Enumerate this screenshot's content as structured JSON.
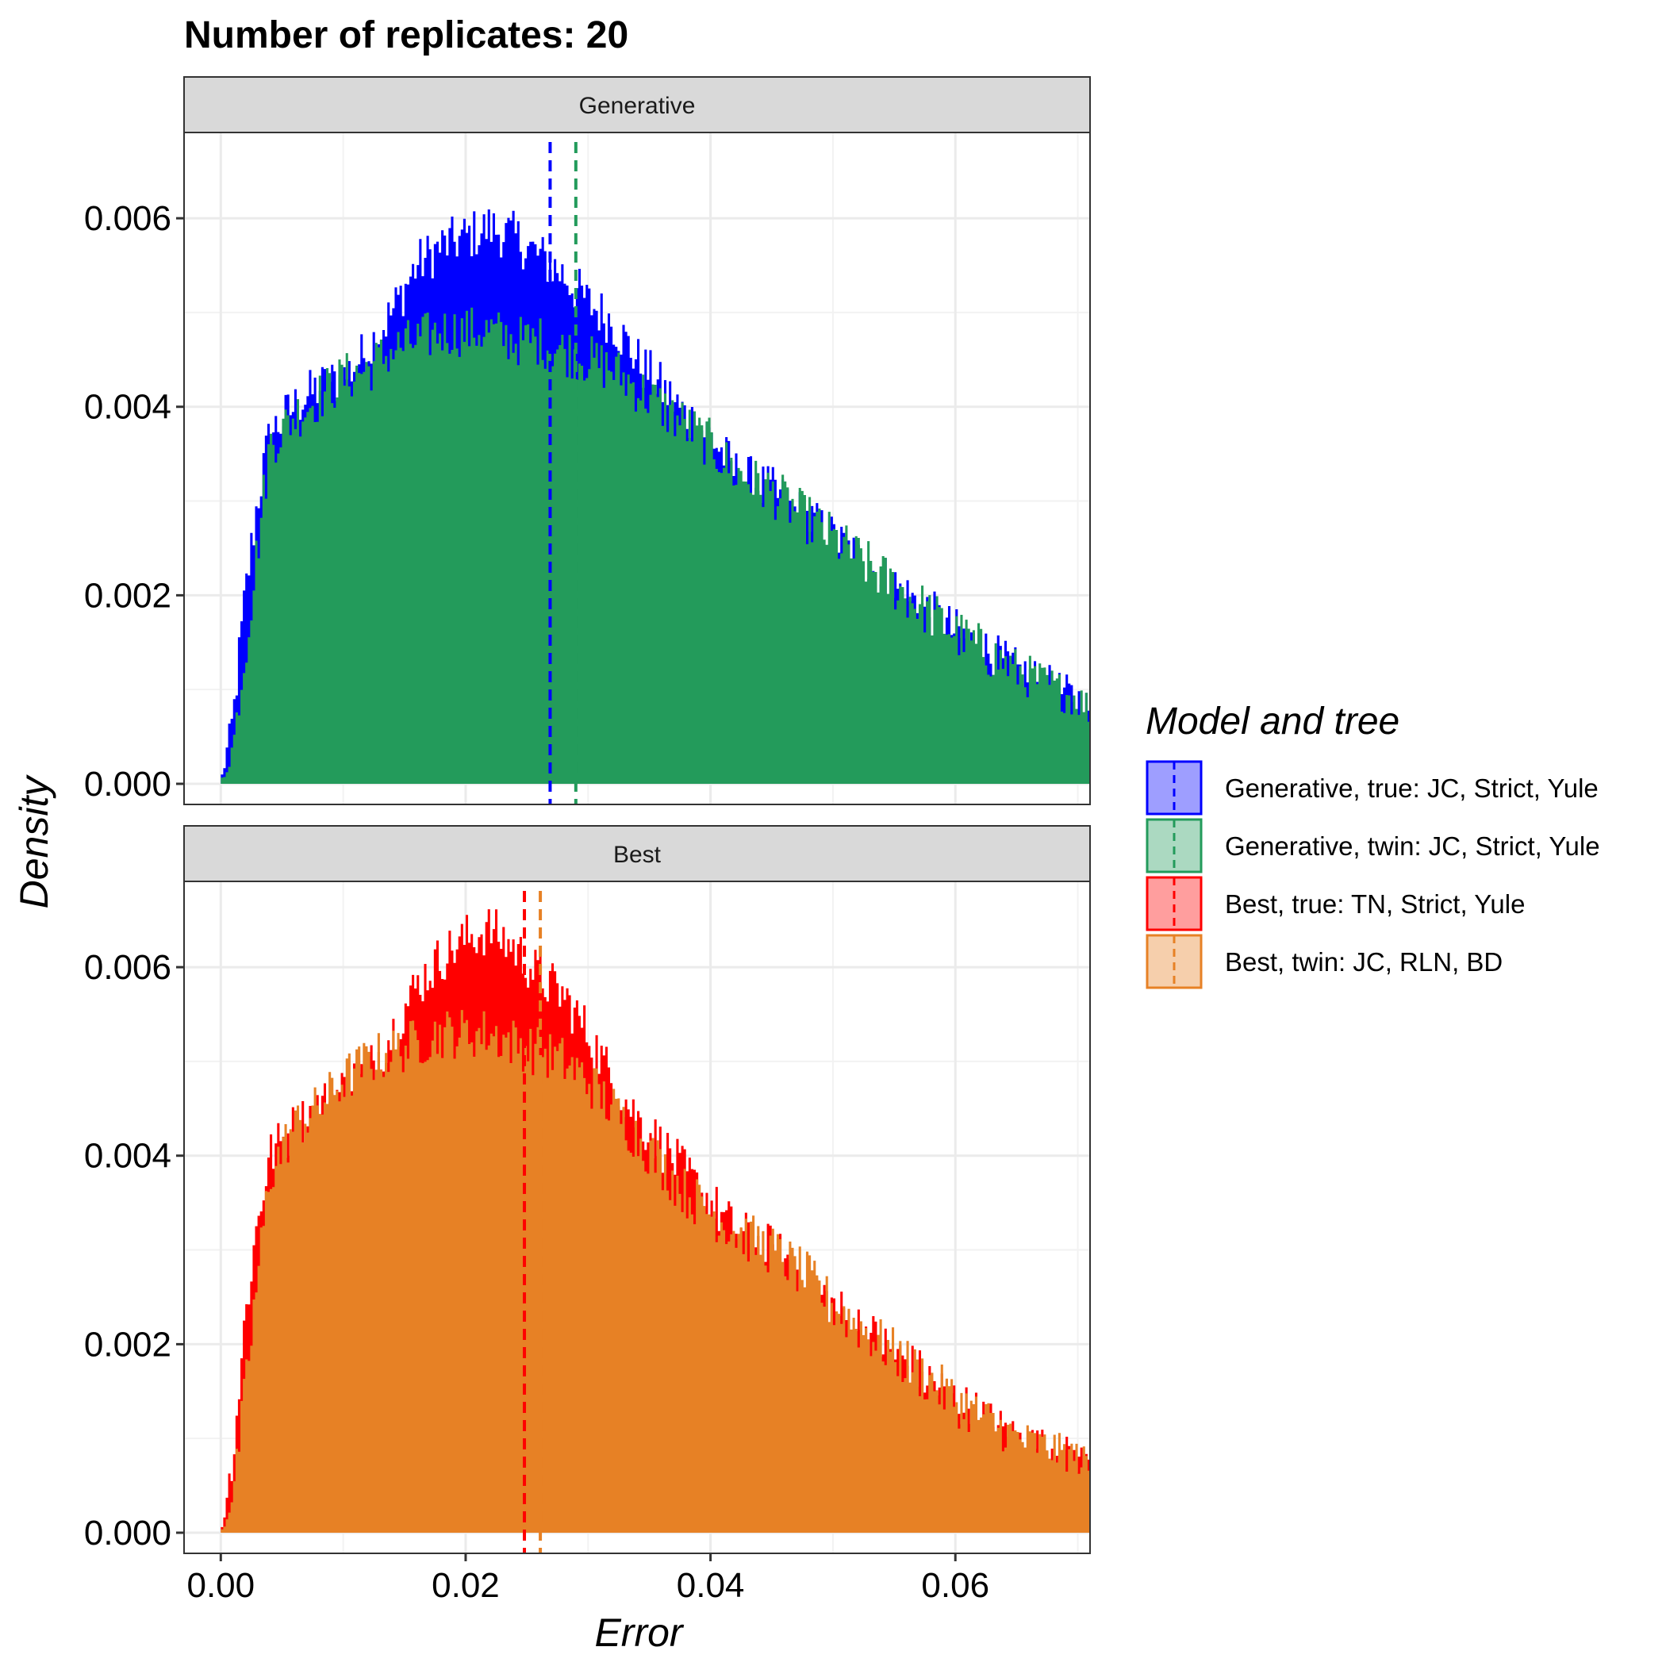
{
  "chart_data": {
    "type": "histogram",
    "title": "Number of replicates:  20",
    "xlabel": "Error",
    "ylabel": "Density",
    "xlim": [
      -0.003,
      0.071
    ],
    "ylim": [
      0,
      0.0068
    ],
    "x_ticks": [
      "0.00",
      "0.02",
      "0.04",
      "0.06"
    ],
    "y_ticks": [
      "0.000",
      "0.002",
      "0.004",
      "0.006"
    ],
    "grid": true,
    "legend": {
      "title": "Model and tree",
      "position": "right",
      "entries": [
        {
          "label": "Generative, true: JC, Strict, Yule",
          "color": "#0000ff"
        },
        {
          "label": "Generative, twin: JC, Strict, Yule",
          "color": "#239b5b"
        },
        {
          "label": "Best, true: TN, Strict, Yule",
          "color": "#ff0000"
        },
        {
          "label": "Best, twin: JC, RLN, BD",
          "color": "#e78125"
        }
      ]
    },
    "facets": [
      {
        "strip": "Generative",
        "series": [
          {
            "name": "Generative, true: JC, Strict, Yule",
            "color": "#0000ff",
            "mean": 0.0269,
            "x": [
              0.0,
              0.001,
              0.002,
              0.003,
              0.004,
              0.006,
              0.008,
              0.01,
              0.012,
              0.014,
              0.016,
              0.018,
              0.02,
              0.022,
              0.024,
              0.026,
              0.028,
              0.03,
              0.032,
              0.034,
              0.036,
              0.038,
              0.04,
              0.042,
              0.045,
              0.048,
              0.05,
              0.055,
              0.06,
              0.065,
              0.07,
              0.071
            ],
            "density": [
              0.0,
              0.0007,
              0.002,
              0.003,
              0.0037,
              0.004,
              0.0042,
              0.0043,
              0.0046,
              0.005,
              0.0055,
              0.0057,
              0.0058,
              0.0059,
              0.0058,
              0.0056,
              0.0054,
              0.0051,
              0.0049,
              0.0045,
              0.0042,
              0.0039,
              0.0037,
              0.0033,
              0.0031,
              0.0028,
              0.0026,
              0.0021,
              0.0016,
              0.0012,
              0.0009,
              0.0008
            ]
          },
          {
            "name": "Generative, twin: JC, Strict, Yule",
            "color": "#239b5b",
            "mean": 0.029,
            "x": [
              0.0,
              0.001,
              0.002,
              0.003,
              0.004,
              0.006,
              0.008,
              0.01,
              0.012,
              0.014,
              0.016,
              0.018,
              0.02,
              0.022,
              0.024,
              0.026,
              0.028,
              0.03,
              0.032,
              0.034,
              0.036,
              0.038,
              0.04,
              0.042,
              0.045,
              0.048,
              0.05,
              0.055,
              0.06,
              0.065,
              0.07,
              0.071
            ],
            "density": [
              0.0,
              0.0004,
              0.0014,
              0.0025,
              0.0036,
              0.0039,
              0.0041,
              0.0043,
              0.0044,
              0.0046,
              0.0047,
              0.0048,
              0.0048,
              0.0048,
              0.0047,
              0.0047,
              0.0046,
              0.0045,
              0.0044,
              0.0042,
              0.004,
              0.0038,
              0.0036,
              0.0033,
              0.0031,
              0.0028,
              0.0026,
              0.0021,
              0.0016,
              0.0012,
              0.0009,
              0.0008
            ]
          }
        ]
      },
      {
        "strip": "Best",
        "series": [
          {
            "name": "Best, true: TN, Strict, Yule",
            "color": "#ff0000",
            "mean": 0.0248,
            "x": [
              0.0,
              0.001,
              0.002,
              0.003,
              0.004,
              0.006,
              0.008,
              0.01,
              0.012,
              0.014,
              0.016,
              0.018,
              0.02,
              0.022,
              0.024,
              0.026,
              0.028,
              0.03,
              0.032,
              0.034,
              0.036,
              0.038,
              0.04,
              0.042,
              0.045,
              0.048,
              0.05,
              0.055,
              0.06,
              0.065,
              0.07,
              0.071
            ],
            "density": [
              0.0,
              0.0008,
              0.0023,
              0.0033,
              0.004,
              0.0043,
              0.0045,
              0.0047,
              0.0049,
              0.0053,
              0.0058,
              0.0061,
              0.0063,
              0.0064,
              0.0062,
              0.0059,
              0.0057,
              0.0053,
              0.0048,
              0.0044,
              0.0041,
              0.0038,
              0.0035,
              0.0032,
              0.003,
              0.0027,
              0.0024,
              0.0019,
              0.0014,
              0.001,
              0.0008,
              0.0007
            ]
          },
          {
            "name": "Best, twin: JC, RLN, BD",
            "color": "#e78125",
            "mean": 0.0261,
            "x": [
              0.0,
              0.001,
              0.002,
              0.003,
              0.004,
              0.006,
              0.008,
              0.01,
              0.012,
              0.014,
              0.016,
              0.018,
              0.02,
              0.022,
              0.024,
              0.026,
              0.028,
              0.03,
              0.032,
              0.034,
              0.036,
              0.038,
              0.04,
              0.042,
              0.045,
              0.048,
              0.05,
              0.055,
              0.06,
              0.065,
              0.07,
              0.071
            ],
            "density": [
              0.0,
              0.0004,
              0.0015,
              0.0027,
              0.0038,
              0.0043,
              0.0045,
              0.0048,
              0.005,
              0.0051,
              0.0052,
              0.0053,
              0.0053,
              0.0053,
              0.0052,
              0.0051,
              0.005,
              0.0048,
              0.0045,
              0.0042,
              0.0039,
              0.0036,
              0.0034,
              0.0032,
              0.003,
              0.0027,
              0.0024,
              0.0019,
              0.0014,
              0.001,
              0.0008,
              0.0007
            ]
          }
        ]
      }
    ]
  }
}
